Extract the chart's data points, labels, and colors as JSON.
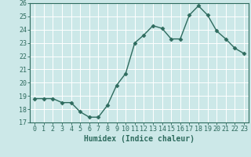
{
  "x": [
    0,
    1,
    2,
    3,
    4,
    5,
    6,
    7,
    8,
    9,
    10,
    11,
    12,
    13,
    14,
    15,
    16,
    17,
    18,
    19,
    20,
    21,
    22,
    23
  ],
  "y": [
    18.8,
    18.8,
    18.8,
    18.5,
    18.5,
    17.8,
    17.4,
    17.4,
    18.3,
    19.8,
    20.7,
    23.0,
    23.6,
    24.3,
    24.1,
    23.3,
    23.3,
    25.1,
    25.8,
    25.1,
    23.9,
    23.3,
    22.6,
    22.2
  ],
  "line_color": "#2e6b5e",
  "marker": "D",
  "marker_size": 2.5,
  "bg_color": "#cce8e8",
  "grid_color": "#ffffff",
  "xlabel": "Humidex (Indice chaleur)",
  "xlim": [
    -0.5,
    23.5
  ],
  "ylim": [
    17,
    26
  ],
  "yticks": [
    17,
    18,
    19,
    20,
    21,
    22,
    23,
    24,
    25,
    26
  ],
  "xticks": [
    0,
    1,
    2,
    3,
    4,
    5,
    6,
    7,
    8,
    9,
    10,
    11,
    12,
    13,
    14,
    15,
    16,
    17,
    18,
    19,
    20,
    21,
    22,
    23
  ],
  "tick_fontsize": 6,
  "xlabel_fontsize": 7,
  "linewidth": 1.0
}
